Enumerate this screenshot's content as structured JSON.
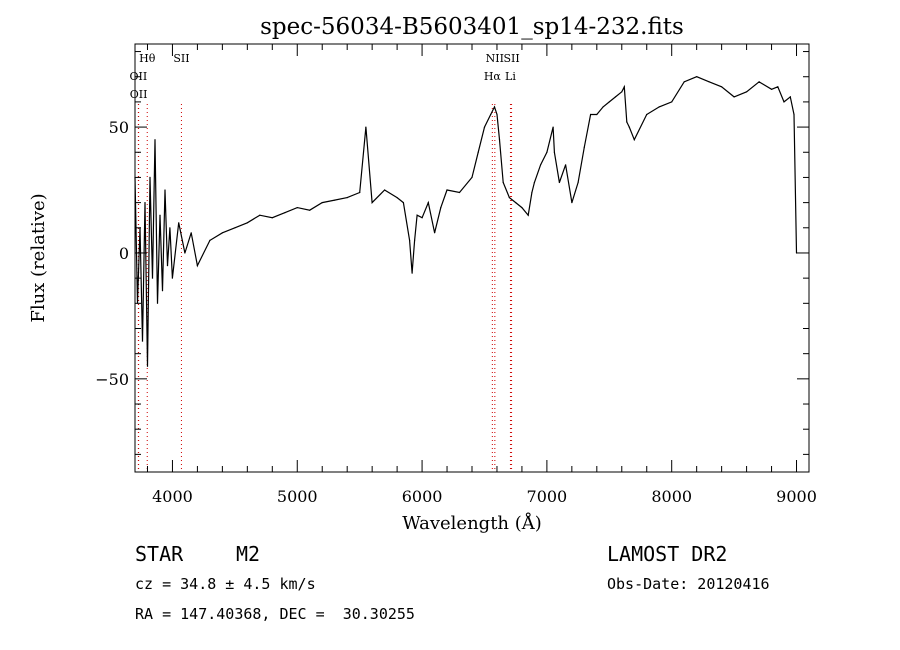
{
  "chart_data": {
    "type": "line",
    "title": "spec-56034-B5603401_sp14-232.fits",
    "xlabel": "Wavelength (Å)",
    "ylabel": "Flux (relative)",
    "xlim": [
      3700,
      9100
    ],
    "ylim": [
      -87,
      83
    ],
    "xticks": [
      4000,
      5000,
      6000,
      7000,
      8000,
      9000
    ],
    "yticks": [
      -50,
      0,
      50
    ],
    "grid": false,
    "line_color": "#000000",
    "marker_color": "#cc0000",
    "series": [
      {
        "x": [
          3700,
          3720,
          3740,
          3760,
          3780,
          3800,
          3820,
          3840,
          3860,
          3880,
          3900,
          3920,
          3940,
          3960,
          3980,
          4000,
          4050,
          4100,
          4150,
          4200,
          4300,
          4400,
          4500,
          4600,
          4700,
          4800,
          4900,
          5000,
          5100,
          5200,
          5300,
          5400,
          5500,
          5550,
          5600,
          5700,
          5800,
          5850,
          5900,
          5920,
          5940,
          5960,
          6000,
          6050,
          6100,
          6150,
          6200,
          6300,
          6400,
          6450,
          6500,
          6550,
          6580,
          6600,
          6620,
          6650,
          6700,
          6750,
          6800,
          6850,
          6880,
          6900,
          6950,
          7000,
          7050,
          7060,
          7100,
          7150,
          7200,
          7250,
          7300,
          7350,
          7400,
          7450,
          7500,
          7550,
          7600,
          7620,
          7640,
          7660,
          7700,
          7800,
          7900,
          8000,
          8100,
          8200,
          8300,
          8400,
          8500,
          8600,
          8700,
          8800,
          8850,
          8900,
          8950,
          8980,
          9000
        ],
        "y": [
          30,
          -20,
          10,
          -35,
          20,
          -45,
          30,
          -10,
          45,
          -20,
          15,
          -15,
          25,
          -5,
          10,
          -10,
          12,
          0,
          8,
          -5,
          5,
          8,
          10,
          12,
          15,
          14,
          16,
          18,
          17,
          20,
          21,
          22,
          24,
          50,
          20,
          25,
          22,
          20,
          5,
          -8,
          5,
          15,
          14,
          20,
          8,
          18,
          25,
          24,
          30,
          40,
          50,
          55,
          58,
          55,
          45,
          28,
          22,
          20,
          18,
          15,
          24,
          28,
          35,
          40,
          50,
          40,
          28,
          35,
          20,
          28,
          42,
          55,
          55,
          58,
          60,
          62,
          64,
          66,
          52,
          50,
          45,
          55,
          58,
          60,
          68,
          70,
          68,
          66,
          62,
          64,
          68,
          65,
          66,
          60,
          62,
          55,
          0
        ]
      }
    ],
    "lines": [
      {
        "label": "Hθ",
        "x": 3798
      },
      {
        "label": "OII",
        "x": 3727
      },
      {
        "label": "OII",
        "x": 3729
      },
      {
        "label": "SII",
        "x": 4072
      },
      {
        "label": "NII",
        "x": 6583
      },
      {
        "label": "Hα",
        "x": 6563
      },
      {
        "label": "SII",
        "x": 6717
      },
      {
        "label": "Li",
        "x": 6708
      }
    ]
  },
  "info": {
    "class_label": "STAR",
    "subclass_label": "M2",
    "survey_label": "LAMOST DR2",
    "cz_line": "cz = 34.8 ± 4.5 km/s",
    "obs_date_line": "Obs-Date: 20120416",
    "coords_line": "RA = 147.40368, DEC =  30.30255"
  }
}
